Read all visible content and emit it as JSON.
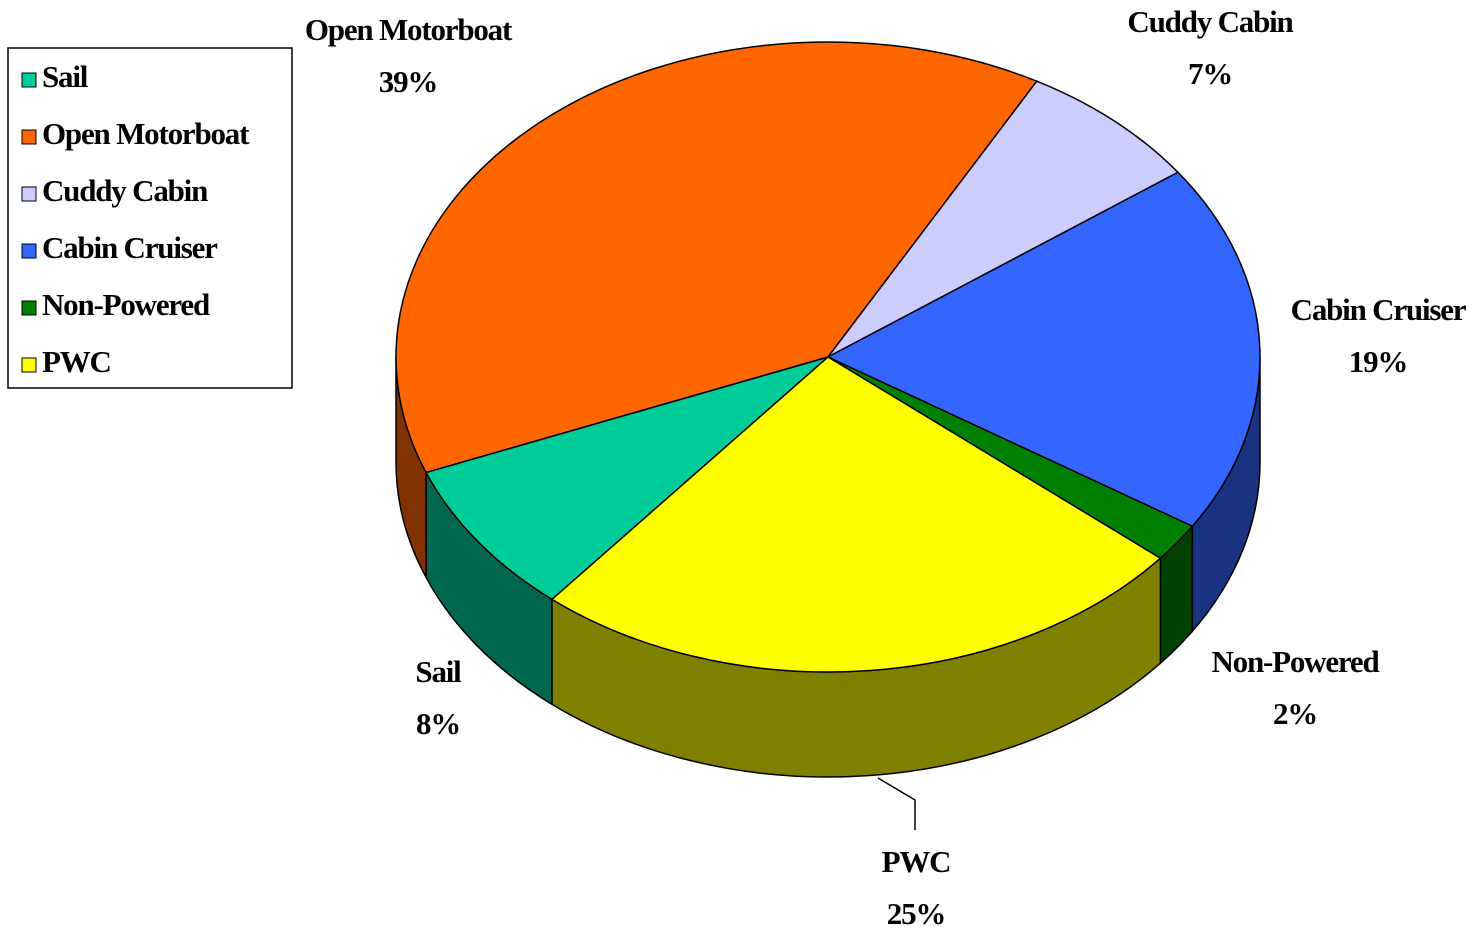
{
  "chart_data": {
    "type": "pie",
    "categories": [
      "Sail",
      "Open Motorboat",
      "Cuddy Cabin",
      "Cabin Cruiser",
      "Non-Powered",
      "PWC"
    ],
    "values": [
      8,
      39,
      7,
      19,
      2,
      25
    ],
    "value_labels": [
      "8%",
      "39%",
      "7%",
      "19%",
      "2%",
      "25%"
    ],
    "colors": [
      "#00cc99",
      "#ff6600",
      "#ccccff",
      "#3366ff",
      "#008000",
      "#ffff00"
    ],
    "legend": "top-left"
  }
}
